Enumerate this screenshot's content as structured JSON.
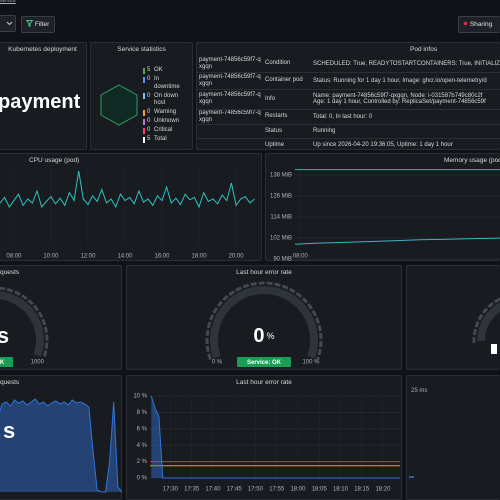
{
  "top_bar": {
    "breadcrumb": "service",
    "filter": "Filter",
    "sharing": "Sharing"
  },
  "kubernetes_deployment": {
    "title": "Kubernetes deployment",
    "name": "payment"
  },
  "service_statistics": {
    "title": "Service statistics",
    "items": [
      {
        "count": 5,
        "label": "OK",
        "color": "#56a64b"
      },
      {
        "count": 0,
        "label": "In downtime",
        "color": "#5794f2"
      },
      {
        "count": 0,
        "label": "On down host",
        "color": "#8ab8ff"
      },
      {
        "count": 0,
        "label": "Warning",
        "color": "#ff9830"
      },
      {
        "count": 0,
        "label": "Unknown",
        "color": "#b877d9"
      },
      {
        "count": 0,
        "label": "Critical",
        "color": "#f2495c"
      },
      {
        "count": 5,
        "label": "Total",
        "color": "#ffffff"
      }
    ]
  },
  "pod_infos": {
    "title": "Pod infos",
    "rows": [
      {
        "pod": "payment-74856c59f7-qxgqn",
        "label": "Condition",
        "lines": [
          "SCHEDULED: True, READYTOSTARTCONTAINERS: True, INITIALIZ"
        ]
      },
      {
        "pod": "payment-74856c59f7-qxgqn",
        "label": "Container pod",
        "lines": [
          "Status: Running for 1 day 1 hour, Image: ghcr.io/open-telemetry/d"
        ]
      },
      {
        "pod": "payment-74856c59f7-qxgqn",
        "label": "Info",
        "lines": [
          "Name: payment-74856c59f7-qxgqn, Node: i-031587b749c80c2f",
          "Age: 1 day 1 hour, Controlled by: ReplicaSet/payment-74856c59f"
        ]
      },
      {
        "pod": "payment-74856c59f7-qxgqn",
        "label": "Restarts",
        "lines": [
          "Total: 0, In last hour: 0"
        ]
      },
      {
        "label": "Status",
        "lines": [
          "Running"
        ]
      },
      {
        "label": "Uptime",
        "lines": [
          "Up since 2026-04-20 19:36:05, Uptime: 1 day 1 hour"
        ]
      }
    ]
  },
  "cpu_chart": {
    "type": "line",
    "title": "CPU usage (pod)",
    "color": "#2ec4c0",
    "grid": true,
    "x": [
      7.25,
      7.5,
      7.75,
      8,
      8.25,
      8.5,
      8.75,
      9,
      9.25,
      9.5,
      9.75,
      10,
      10.25,
      10.5,
      10.75,
      11,
      11.25,
      11.5,
      11.75,
      12,
      12.25,
      12.5,
      12.75,
      13,
      13.25,
      13.5,
      13.75,
      14,
      14.25,
      14.5,
      14.75,
      15,
      15.25,
      15.5,
      15.75,
      16,
      16.25,
      16.5,
      16.75,
      17,
      17.25,
      17.5,
      17.75,
      18,
      18.25,
      18.5,
      18.75,
      19,
      19.25,
      19.5,
      19.75,
      20,
      20.25,
      20.5,
      20.75,
      21
    ],
    "values": [
      0.55,
      0.62,
      0.5,
      0.58,
      0.66,
      0.52,
      0.6,
      0.55,
      0.7,
      0.5,
      0.57,
      0.63,
      0.54,
      0.61,
      0.52,
      0.68,
      0.58,
      0.95,
      0.6,
      0.53,
      0.64,
      0.57,
      0.72,
      0.55,
      0.6,
      0.5,
      0.66,
      0.58,
      0.62,
      0.54,
      0.7,
      0.56,
      0.6,
      0.52,
      0.64,
      0.58,
      0.75,
      0.55,
      0.61,
      0.53,
      0.66,
      0.59,
      0.62,
      0.5,
      0.68,
      0.57,
      0.6,
      0.54,
      0.65,
      0.58,
      0.8,
      0.52,
      0.6,
      0.63,
      0.55,
      0.6
    ],
    "xlim": [
      7.25,
      21.4
    ],
    "ylim": [
      0,
      1
    ],
    "xticks": [
      {
        "value": 8,
        "label": "08:00"
      },
      {
        "value": 10,
        "label": "10:00"
      },
      {
        "value": 12,
        "label": "12:00"
      },
      {
        "value": 14,
        "label": "14:00"
      },
      {
        "value": 16,
        "label": "16:00"
      },
      {
        "value": 18,
        "label": "18:00"
      },
      {
        "value": 20,
        "label": "20:00"
      }
    ]
  },
  "memory_chart": {
    "type": "line",
    "title": "Memory usage (pod)",
    "grid": true,
    "x": [
      7.8,
      8.5,
      9.5,
      10.5,
      11.5,
      12.5,
      13.5,
      14.5,
      15.5
    ],
    "series": [
      {
        "color": "#2bb5a8",
        "values": [
          141,
          141,
          141,
          141,
          141,
          141,
          141,
          141,
          141
        ]
      },
      {
        "color": "#3bb4c4",
        "values": [
          98.5,
          99,
          99.5,
          100,
          100.5,
          101,
          101.3,
          101.7,
          102
        ]
      }
    ],
    "xlim": [
      7.8,
      15.5
    ],
    "ylim": [
      89.5,
      142.5
    ],
    "xticks": [
      {
        "value": 8,
        "label": "08:00"
      }
    ],
    "yticks": [
      {
        "value": 138,
        "label": "138 MiB"
      },
      {
        "value": 126,
        "label": "126 MiB"
      },
      {
        "value": 114,
        "label": "114 MiB"
      },
      {
        "value": 102,
        "label": "102 MiB"
      },
      {
        "value": 90,
        "label": "90 MiB"
      }
    ]
  },
  "requests_gauge": {
    "type": "gauge",
    "title": "quests",
    "value_label": "s",
    "status": "K",
    "ylim": [
      0,
      1000
    ],
    "yticks": [
      1000
    ]
  },
  "error_gauge": {
    "type": "gauge",
    "title": "Last hour error rate",
    "value": 0,
    "unit": "%",
    "status": "Service: OK",
    "ylim": [
      0,
      100
    ],
    "yticks": [
      {
        "value": 0,
        "label": "0 %"
      },
      {
        "value": 100,
        "label": "100 %"
      }
    ]
  },
  "requests_chart": {
    "type": "area",
    "title": "quests",
    "value_label": "s",
    "color": "#3274d9",
    "ylim": [
      0,
      1
    ],
    "values": [
      0.75,
      0.88,
      0.9,
      0.86,
      0.92,
      0.89,
      0.91,
      0.87,
      0.9,
      0.93,
      0.88,
      0.9,
      0.86,
      0.89,
      0.91,
      0.88,
      0.9,
      0.87,
      0.92,
      0.89,
      0.9,
      0.88,
      0.85,
      0.4,
      0.02,
      0,
      0,
      0.3,
      0.9,
      0.05,
      0
    ]
  },
  "error_chart": {
    "type": "line",
    "title": "Last hour error rate",
    "color": "#3274d9",
    "fill": true,
    "grid": true,
    "x": [
      17.425,
      17.44,
      17.455,
      17.47,
      17.5,
      17.6,
      17.7,
      17.8,
      17.9,
      18,
      18.1,
      18.2,
      18.3,
      18.4
    ],
    "values": [
      10,
      8.5,
      7.5,
      0,
      0,
      0,
      0,
      0,
      0,
      0,
      0,
      0,
      0,
      0
    ],
    "xlim": [
      17.42,
      18.4
    ],
    "ylim": [
      0,
      10
    ],
    "thresholds": [
      {
        "value": 2,
        "color": "#e02f44"
      },
      {
        "value": 1.5,
        "color": "#e0b400"
      }
    ],
    "xticks": [
      {
        "value": 17.5,
        "label": "17:30"
      },
      {
        "value": 17.5833,
        "label": "17:35"
      },
      {
        "value": 17.6667,
        "label": "17:40"
      },
      {
        "value": 17.75,
        "label": "17:45"
      },
      {
        "value": 17.8333,
        "label": "17:50"
      },
      {
        "value": 17.9167,
        "label": "17:55"
      },
      {
        "value": 18,
        "label": "18:00"
      },
      {
        "value": 18.0833,
        "label": "18:05"
      },
      {
        "value": 18.1667,
        "label": "18:10"
      },
      {
        "value": 18.25,
        "label": "18:15"
      },
      {
        "value": 18.3333,
        "label": "18:20"
      }
    ],
    "yticks": [
      {
        "value": 10,
        "label": "10 %"
      },
      {
        "value": 8,
        "label": "8 %"
      },
      {
        "value": 6,
        "label": "6 %"
      },
      {
        "value": 4,
        "label": "4 %"
      },
      {
        "value": 2,
        "label": "2 %"
      },
      {
        "value": 0,
        "label": "0 %"
      }
    ]
  },
  "latency_panel": {
    "label": "25 ms"
  }
}
